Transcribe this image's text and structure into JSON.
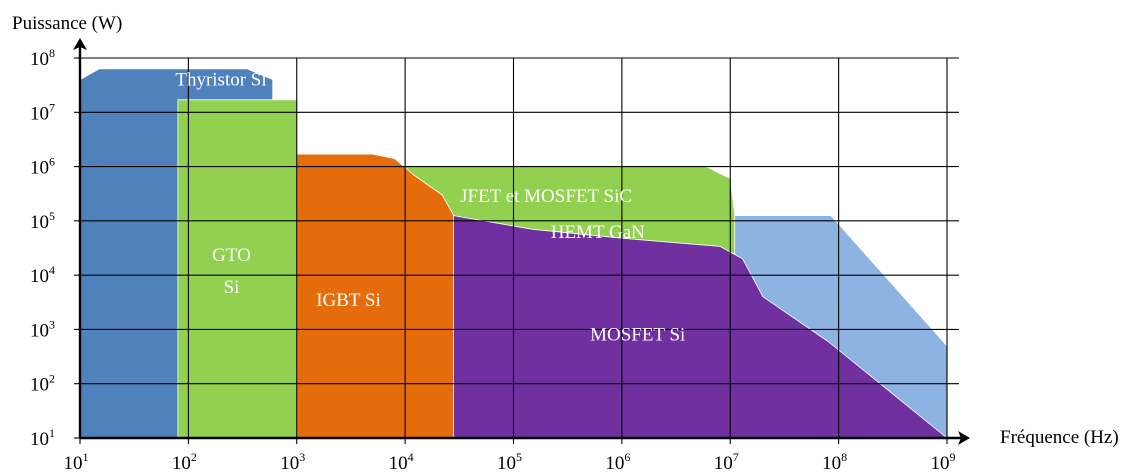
{
  "chart_data": {
    "type": "area",
    "title": "",
    "xlabel": "Fréquence (Hz)",
    "ylabel": "Puissance (W)",
    "xscale": "log",
    "yscale": "log",
    "xlim": [
      10,
      1000000000
    ],
    "ylim": [
      10,
      100000000
    ],
    "grid": true,
    "x_ticks": [
      {
        "base": "10",
        "exp": "1",
        "value": 10
      },
      {
        "base": "10",
        "exp": "2",
        "value": 100
      },
      {
        "base": "10",
        "exp": "3",
        "value": 1000
      },
      {
        "base": "10",
        "exp": "4",
        "value": 10000
      },
      {
        "base": "10",
        "exp": "5",
        "value": 100000
      },
      {
        "base": "10",
        "exp": "6",
        "value": 1000000
      },
      {
        "base": "10",
        "exp": "7",
        "value": 10000000
      },
      {
        "base": "10",
        "exp": "8",
        "value": 100000000
      },
      {
        "base": "10",
        "exp": "9",
        "value": 1000000000
      }
    ],
    "y_ticks": [
      {
        "base": "10",
        "exp": "1",
        "value": 10
      },
      {
        "base": "10",
        "exp": "2",
        "value": 100
      },
      {
        "base": "10",
        "exp": "3",
        "value": 1000
      },
      {
        "base": "10",
        "exp": "4",
        "value": 10000
      },
      {
        "base": "10",
        "exp": "5",
        "value": 100000
      },
      {
        "base": "10",
        "exp": "6",
        "value": 1000000
      },
      {
        "base": "10",
        "exp": "7",
        "value": 10000000
      },
      {
        "base": "10",
        "exp": "8",
        "value": 100000000
      }
    ],
    "regions": [
      {
        "id": "thyristor",
        "label_lines": [
          "Thyristor Si"
        ],
        "color": "#4f81bd",
        "points": [
          [
            10,
            10
          ],
          [
            10,
            40000000
          ],
          [
            15,
            63000000
          ],
          [
            350,
            63000000
          ],
          [
            600,
            40000000
          ],
          [
            600,
            10
          ]
        ],
        "label_at": [
          200,
          40000000
        ]
      },
      {
        "id": "hemt",
        "label_lines": [
          "HEMT GaN"
        ],
        "color": "#8db3e2",
        "points": [
          [
            25000,
            10
          ],
          [
            25000,
            125000
          ],
          [
            85000000,
            125000
          ],
          [
            1000000000,
            500
          ],
          [
            1000000000,
            10
          ]
        ],
        "label_at": [
          600000,
          62000
        ]
      },
      {
        "id": "jfet",
        "label_lines": [
          "JFET et MOSFET SiC"
        ],
        "color": "#92d050",
        "points": [
          [
            3000,
            10
          ],
          [
            3000,
            1000000
          ],
          [
            6000000,
            1000000
          ],
          [
            10000000,
            600000
          ],
          [
            11000000,
            125000
          ],
          [
            11000000,
            10
          ]
        ],
        "label_at": [
          200000,
          290000
        ]
      },
      {
        "id": "igbt",
        "label_lines": [
          "IGBT Si"
        ],
        "color": "#e46c0a",
        "points": [
          [
            800,
            10
          ],
          [
            800,
            1700000
          ],
          [
            5000,
            1700000
          ],
          [
            8000,
            1400000
          ],
          [
            12000,
            700000
          ],
          [
            22000,
            300000
          ],
          [
            30000,
            100000
          ],
          [
            30000,
            10
          ]
        ],
        "label_at": [
          3000,
          3500
        ]
      },
      {
        "id": "mosfet",
        "label_lines": [
          "MOSFET Si"
        ],
        "color": "#7030a0",
        "points": [
          [
            28000,
            10
          ],
          [
            28000,
            125000
          ],
          [
            150000,
            70000
          ],
          [
            1000000,
            48000
          ],
          [
            4000000,
            38000
          ],
          [
            8000000,
            34000
          ],
          [
            13000000,
            20000
          ],
          [
            20000000,
            4000
          ],
          [
            80000000,
            600
          ],
          [
            1000000000,
            10
          ]
        ],
        "label_at": [
          1400000,
          800
        ]
      },
      {
        "id": "gto",
        "label_lines": [
          "GTO",
          "Si"
        ],
        "color": "#92d050",
        "points": [
          [
            80,
            10
          ],
          [
            80,
            17000000
          ],
          [
            120,
            17000000
          ],
          [
            1000,
            17000000
          ],
          [
            1000,
            10
          ]
        ],
        "label_at": [
          250,
          12000
        ]
      }
    ]
  }
}
